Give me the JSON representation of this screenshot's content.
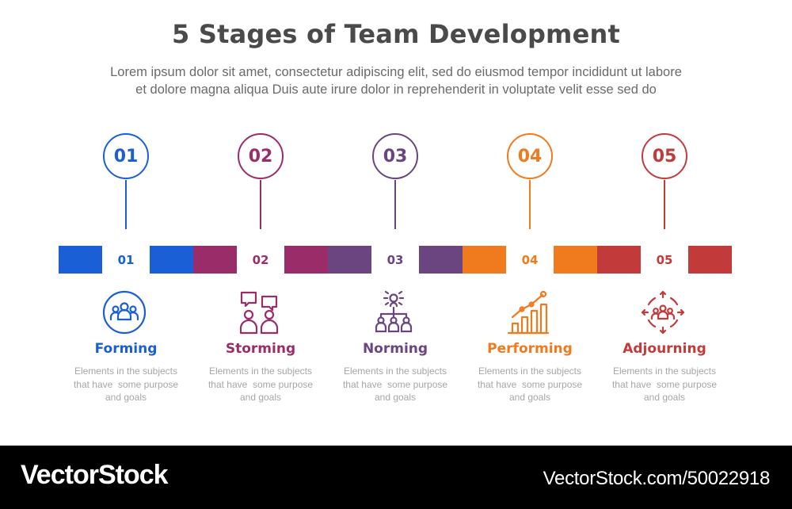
{
  "title": "5 Stages of Team Development",
  "subtitle_line1": "Lorem ipsum dolor sit amet, consectetur adipiscing elit, sed do eiusmod tempor incididunt ut labore",
  "subtitle_line2": "et dolore magna aliqua Duis aute irure dolor in reprehenderit in voluptate velit esse sed do",
  "stages": [
    {
      "number": "01",
      "label": "Forming",
      "desc1": "Elements in the subjects",
      "desc2": "that have  some purpose",
      "desc3": "and goals",
      "color": "#1a5fd6",
      "icon": "team-group-icon"
    },
    {
      "number": "02",
      "label": "Storming",
      "desc1": "Elements in the subjects",
      "desc2": "that have  some purpose",
      "desc3": "and goals",
      "color": "#9b2c6a",
      "icon": "discussion-people-icon"
    },
    {
      "number": "03",
      "label": "Norming",
      "desc1": "Elements in the subjects",
      "desc2": "that have  some purpose",
      "desc3": "and goals",
      "color": "#6b4580",
      "icon": "hierarchy-people-icon"
    },
    {
      "number": "04",
      "label": "Performing",
      "desc1": "Elements in the subjects",
      "desc2": "that have  some purpose",
      "desc3": "and goals",
      "color": "#f07a1e",
      "icon": "growth-chart-icon"
    },
    {
      "number": "05",
      "label": "Adjourning",
      "desc1": "Elements in the subjects",
      "desc2": "that have  some purpose",
      "desc3": "and goals",
      "color": "#c23a3a",
      "icon": "team-dispersal-icon"
    }
  ],
  "footer": {
    "brand": "VectorStock",
    "stock_id": "VectorStock.com/50022918"
  }
}
